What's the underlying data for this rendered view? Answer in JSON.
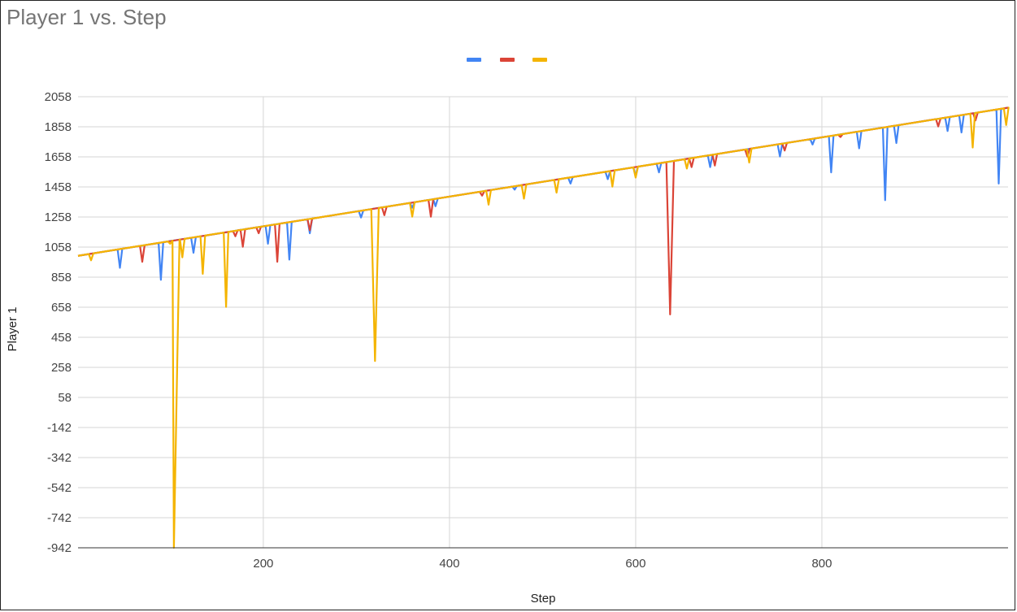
{
  "chart_data": {
    "type": "line",
    "title": "Player 1 vs. Step",
    "xlabel": "Step",
    "ylabel": "Player 1",
    "xlim": [
      1,
      1000
    ],
    "ylim": [
      -942,
      2058
    ],
    "xticks": [
      200,
      400,
      600,
      800
    ],
    "yticks": [
      -942,
      -742,
      -542,
      -342,
      -142,
      58,
      258,
      458,
      658,
      858,
      1058,
      1258,
      1458,
      1658,
      1858,
      2058
    ],
    "grid": true,
    "legend": "top-center",
    "trend": {
      "x": [
        1,
        1000
      ],
      "y": [
        1000,
        1985
      ]
    },
    "series": [
      {
        "color": "#4285f4",
        "values": [
          1000,
          1985
        ],
        "dips": [
          {
            "x": 46,
            "y": 920
          },
          {
            "x": 90,
            "y": 840
          },
          {
            "x": 125,
            "y": 1020
          },
          {
            "x": 205,
            "y": 1080
          },
          {
            "x": 228,
            "y": 975
          },
          {
            "x": 250,
            "y": 1150
          },
          {
            "x": 305,
            "y": 1255
          },
          {
            "x": 360,
            "y": 1320
          },
          {
            "x": 385,
            "y": 1330
          },
          {
            "x": 470,
            "y": 1440
          },
          {
            "x": 530,
            "y": 1480
          },
          {
            "x": 570,
            "y": 1510
          },
          {
            "x": 600,
            "y": 1530
          },
          {
            "x": 625,
            "y": 1555
          },
          {
            "x": 680,
            "y": 1590
          },
          {
            "x": 755,
            "y": 1660
          },
          {
            "x": 790,
            "y": 1740
          },
          {
            "x": 810,
            "y": 1555
          },
          {
            "x": 840,
            "y": 1715
          },
          {
            "x": 868,
            "y": 1370
          },
          {
            "x": 880,
            "y": 1750
          },
          {
            "x": 935,
            "y": 1830
          },
          {
            "x": 950,
            "y": 1820
          },
          {
            "x": 990,
            "y": 1480
          }
        ]
      },
      {
        "color": "#db4437",
        "values": [
          1000,
          1985
        ],
        "dips": [
          {
            "x": 70,
            "y": 960
          },
          {
            "x": 170,
            "y": 1130
          },
          {
            "x": 178,
            "y": 1060
          },
          {
            "x": 195,
            "y": 1150
          },
          {
            "x": 215,
            "y": 960
          },
          {
            "x": 250,
            "y": 1170
          },
          {
            "x": 330,
            "y": 1270
          },
          {
            "x": 380,
            "y": 1260
          },
          {
            "x": 435,
            "y": 1400
          },
          {
            "x": 637,
            "y": 610
          },
          {
            "x": 660,
            "y": 1590
          },
          {
            "x": 685,
            "y": 1600
          },
          {
            "x": 720,
            "y": 1660
          },
          {
            "x": 760,
            "y": 1700
          },
          {
            "x": 820,
            "y": 1790
          },
          {
            "x": 925,
            "y": 1860
          },
          {
            "x": 965,
            "y": 1900
          }
        ]
      },
      {
        "color": "#f4b400",
        "values": [
          1000,
          1985
        ],
        "dips": [
          {
            "x": 15,
            "y": 970
          },
          {
            "x": 100,
            "y": 1080
          },
          {
            "x": 104,
            "y": -942
          },
          {
            "x": 113,
            "y": 990
          },
          {
            "x": 135,
            "y": 880
          },
          {
            "x": 160,
            "y": 660
          },
          {
            "x": 320,
            "y": 300
          },
          {
            "x": 360,
            "y": 1260
          },
          {
            "x": 442,
            "y": 1340
          },
          {
            "x": 480,
            "y": 1380
          },
          {
            "x": 515,
            "y": 1420
          },
          {
            "x": 575,
            "y": 1460
          },
          {
            "x": 600,
            "y": 1520
          },
          {
            "x": 655,
            "y": 1580
          },
          {
            "x": 722,
            "y": 1620
          },
          {
            "x": 962,
            "y": 1720
          },
          {
            "x": 998,
            "y": 1870
          }
        ]
      }
    ]
  }
}
